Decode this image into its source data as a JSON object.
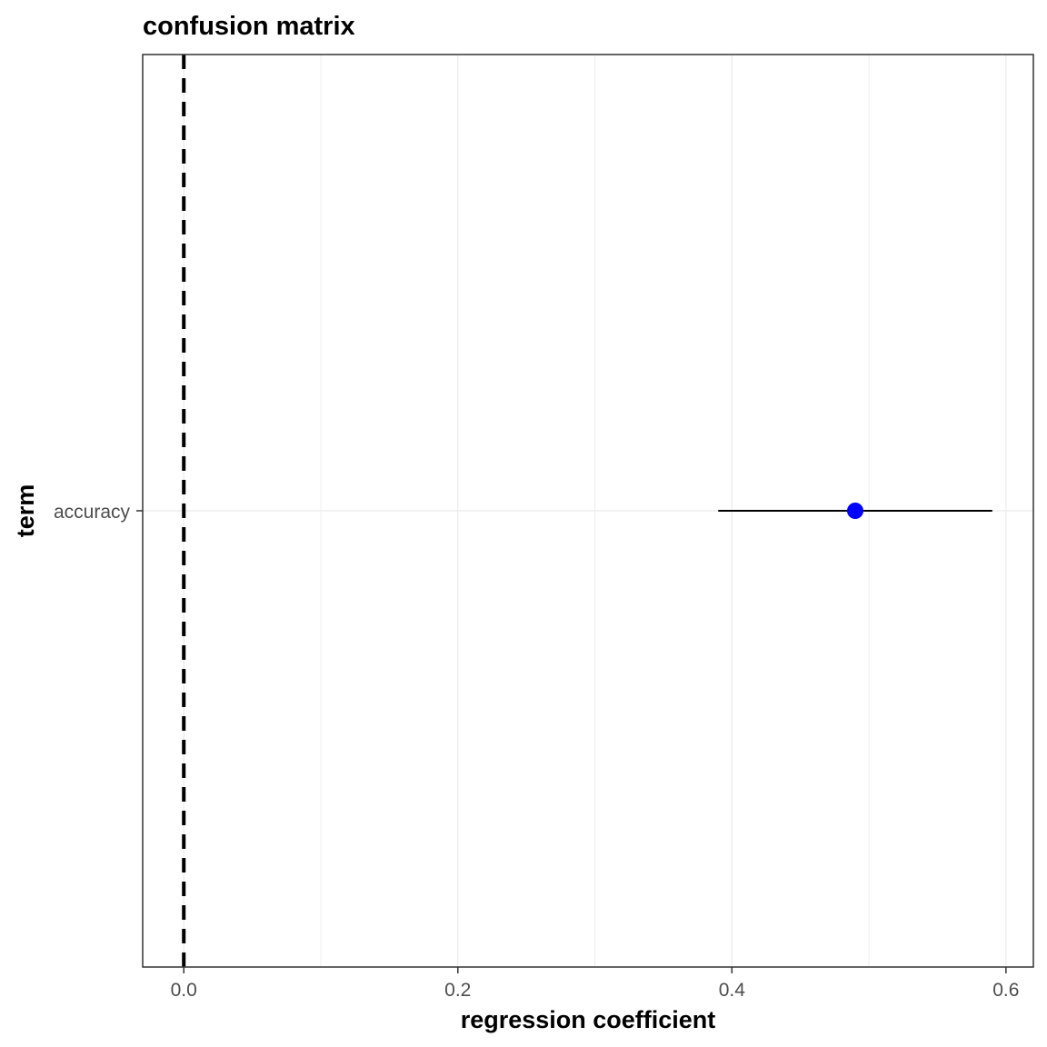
{
  "chart_data": {
    "type": "scatter",
    "title": "confusion matrix",
    "xlabel": "regression coefficient",
    "ylabel": "term",
    "xlim": [
      -0.03,
      0.62
    ],
    "x_ticks": [
      0.0,
      0.2,
      0.4,
      0.6
    ],
    "x_tick_labels": [
      "0.0",
      "0.2",
      "0.4",
      "0.6"
    ],
    "categories": [
      "accuracy"
    ],
    "points": [
      {
        "term": "accuracy",
        "estimate": 0.49,
        "conf_low": 0.39,
        "conf_high": 0.59
      }
    ],
    "reference_line": {
      "x": 0,
      "style": "dashed"
    },
    "grid": true,
    "colors": {
      "point": "#0000ff",
      "errorbar": "#000000",
      "reference": "#000000",
      "grid": "#ebebeb",
      "panel_border": "#333333"
    }
  }
}
